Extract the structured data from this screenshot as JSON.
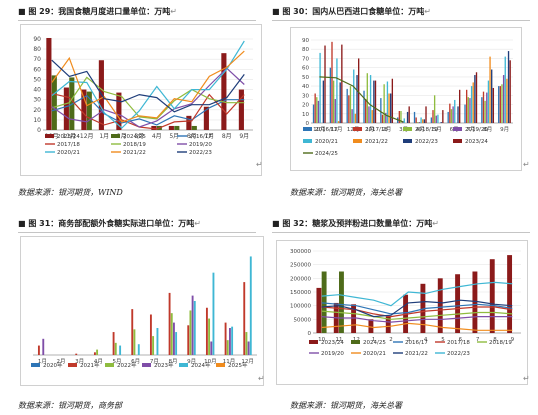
{
  "figures": [
    {
      "title": "图 29：我国食糖月度进口量单位：万吨",
      "source": "数据来源：银河期货，WIND"
    },
    {
      "title": "图 30：国内从巴西进口食糖单位：万吨",
      "source": "数据来源：银河期货，海关总署"
    },
    {
      "title": "图 31：商务部配额外食糖实际进口单位：万吨",
      "source": "数据来源：银河期货，商务部"
    },
    {
      "title": "图 32：糖浆及预拌粉进口数量单位：万吨",
      "source": "数据来源：银河期货，海关总署"
    }
  ],
  "return_mark": "↵",
  "chart_data": [
    {
      "type": "bar",
      "categories": [
        "10月",
        "11月",
        "12月",
        "1月",
        "2月",
        "3月",
        "4月",
        "5月",
        "6月",
        "7月",
        "8月",
        "9月"
      ],
      "ylim": [
        0,
        90
      ],
      "yticks": [
        0,
        10,
        20,
        30,
        40,
        50,
        60,
        70,
        80,
        90
      ],
      "bar_series": [
        {
          "name": "2023/24",
          "color": "#8b1a1a",
          "values": [
            91,
            42,
            40,
            69,
            37,
            0,
            4,
            4,
            14,
            23,
            76,
            40
          ]
        },
        {
          "name": "2024/25",
          "color": "#4e6b1a",
          "values": [
            54,
            52,
            38,
            0,
            0,
            0,
            4,
            4,
            4,
            0,
            0,
            0
          ]
        }
      ],
      "line_series": [
        {
          "name": "2016/17",
          "color": "#2e75b6",
          "values": [
            19,
            24,
            34,
            16,
            7,
            11,
            5,
            14,
            10,
            22,
            30,
            30
          ]
        },
        {
          "name": "2017/18",
          "color": "#c0392b",
          "values": [
            36,
            32,
            13,
            5,
            10,
            3,
            1,
            8,
            9,
            35,
            16,
            35
          ]
        },
        {
          "name": "2018/19",
          "color": "#8fbc3f",
          "values": [
            22,
            27,
            52,
            38,
            33,
            13,
            11,
            29,
            40,
            31,
            27,
            27
          ]
        },
        {
          "name": "2019/20",
          "color": "#7f4ea8",
          "values": [
            23,
            11,
            8,
            20,
            14,
            3,
            9,
            21,
            26,
            44,
            61,
            45
          ]
        },
        {
          "name": "2020/21",
          "color": "#3fb7d4",
          "values": [
            34,
            48,
            47,
            17,
            2,
            19,
            43,
            21,
            40,
            40,
            60,
            88
          ]
        },
        {
          "name": "2021/22",
          "color": "#f08c1e",
          "values": [
            47,
            71,
            24,
            33,
            8,
            14,
            12,
            31,
            28,
            53,
            62,
            78
          ]
        },
        {
          "name": "2022/23",
          "color": "#1f3d7a",
          "values": [
            69,
            53,
            58,
            31,
            28,
            35,
            32,
            18,
            25,
            25,
            32,
            55
          ]
        }
      ]
    },
    {
      "type": "bar",
      "categories": [
        "10月",
        "11月",
        "12月",
        "1月",
        "2月",
        "3月",
        "4月",
        "5月",
        "6月",
        "7月",
        "8月",
        "9月"
      ],
      "ylim": [
        0,
        90
      ],
      "yticks": [
        0,
        10,
        20,
        30,
        40,
        50,
        60,
        70,
        80,
        90
      ],
      "bar_series": [
        {
          "name": "2016/17",
          "color": "#2e75b6",
          "values": [
            20,
            60,
            37,
            35,
            27,
            6,
            12,
            6,
            12,
            20,
            28,
            40
          ]
        },
        {
          "name": "2017/18",
          "color": "#c0392b",
          "values": [
            32,
            88,
            30,
            26,
            9,
            13,
            6,
            14,
            21,
            36,
            34,
            40
          ]
        },
        {
          "name": "2018/19",
          "color": "#8fbc3f",
          "values": [
            28,
            46,
            40,
            54,
            42,
            13,
            1,
            30,
            15,
            28,
            24,
            42
          ]
        },
        {
          "name": "2019/20",
          "color": "#7f4ea8",
          "values": [
            24,
            26,
            15,
            18,
            11,
            1,
            1,
            8,
            18,
            27,
            33,
            52
          ]
        },
        {
          "name": "2020/21",
          "color": "#3fb7d4",
          "values": [
            76,
            70,
            58,
            52,
            45,
            5,
            6,
            9,
            25,
            40,
            46,
            72
          ]
        },
        {
          "name": "2021/22",
          "color": "#f08c1e",
          "values": [
            0,
            2,
            10,
            14,
            32,
            0,
            4,
            0,
            0,
            44,
            72,
            48
          ]
        },
        {
          "name": "2022/23",
          "color": "#1f3d7a",
          "values": [
            46,
            44,
            52,
            46,
            32,
            12,
            4,
            1,
            18,
            52,
            58,
            78
          ]
        },
        {
          "name": "2023/24",
          "color": "#8b1a1a",
          "values": [
            84,
            85,
            70,
            46,
            48,
            18,
            18,
            14,
            36,
            55,
            38,
            68
          ]
        }
      ],
      "line_series": [
        {
          "name": "2024/25",
          "color": "#4e6b1a",
          "values": [
            50,
            49,
            40,
            20,
            8,
            1,
            null,
            null,
            null,
            null,
            null,
            null
          ]
        }
      ]
    },
    {
      "type": "bar",
      "categories": [
        "1月",
        "2月",
        "3月",
        "4月",
        "5月",
        "6月",
        "7月",
        "8月",
        "9月",
        "10月",
        "11月",
        "12月"
      ],
      "ylim": [
        0,
        80
      ],
      "bar_series": [
        {
          "name": "2020年",
          "color": "#2e75b6",
          "values": [
            0,
            0,
            0,
            0,
            0,
            0,
            0,
            0,
            0,
            0,
            0,
            0
          ]
        },
        {
          "name": "2021年",
          "color": "#c0392b",
          "values": [
            7,
            0,
            1,
            2,
            17,
            34,
            30,
            46,
            22,
            35,
            24,
            54
          ]
        },
        {
          "name": "2022年",
          "color": "#8fbc3f",
          "values": [
            0,
            0,
            0,
            4,
            9,
            19,
            14,
            31,
            33,
            27,
            11,
            17
          ]
        },
        {
          "name": "2023年",
          "color": "#7f4ea8",
          "values": [
            12,
            0,
            0,
            0,
            0,
            0,
            0,
            24,
            44,
            10,
            20,
            10
          ]
        },
        {
          "name": "2024年",
          "color": "#3fb7d4",
          "values": [
            0,
            0,
            0,
            0,
            7,
            8,
            20,
            17,
            40,
            61,
            21,
            73
          ]
        },
        {
          "name": "2025年",
          "color": "#f08c1e",
          "values": [
            0,
            0,
            0,
            0,
            0,
            0,
            0,
            0,
            0,
            0,
            0,
            0
          ]
        }
      ]
    },
    {
      "type": "bar",
      "categories": [
        "10",
        "11",
        "12",
        "1",
        "2",
        "3",
        "4",
        "5",
        "6",
        "7",
        "8",
        "9"
      ],
      "ylim": [
        0,
        300000
      ],
      "yticks": [
        0,
        50000,
        100000,
        150000,
        200000,
        250000,
        300000
      ],
      "ytick_labels": [
        "0",
        "50000",
        "100000",
        "150000",
        "200000",
        "250000",
        "300000"
      ],
      "bar_series": [
        {
          "name": "2023/24",
          "color": "#8b1a1a",
          "values": [
            165000,
            110000,
            105000,
            50000,
            60000,
            140000,
            180000,
            200000,
            215000,
            225000,
            270000,
            285000
          ]
        },
        {
          "name": "2024/25",
          "color": "#4e6b1a",
          "values": [
            225000,
            225000,
            0,
            0,
            0,
            0,
            0,
            0,
            0,
            0,
            0,
            0
          ]
        }
      ],
      "line_series": [
        {
          "name": "2016/17",
          "color": "#2e75b6",
          "values": [
            110000,
            105000,
            100000,
            85000,
            70000,
            75000,
            90000,
            95000,
            100000,
            105000,
            100000,
            90000
          ]
        },
        {
          "name": "2017/18",
          "color": "#c0392b",
          "values": [
            95000,
            90000,
            85000,
            70000,
            60000,
            70000,
            80000,
            85000,
            90000,
            95000,
            95000,
            85000
          ]
        },
        {
          "name": "2018/19",
          "color": "#8fbc3f",
          "values": [
            80000,
            75000,
            70000,
            60000,
            50000,
            55000,
            60000,
            65000,
            70000,
            75000,
            75000,
            70000
          ]
        },
        {
          "name": "2019/20",
          "color": "#7f4ea8",
          "values": [
            60000,
            55000,
            55000,
            45000,
            40000,
            45000,
            50000,
            50000,
            55000,
            60000,
            60000,
            60000
          ]
        },
        {
          "name": "2020/21",
          "color": "#f08c1e",
          "values": [
            20000,
            25000,
            30000,
            20000,
            25000,
            35000,
            30000,
            20000,
            15000,
            10000,
            10000,
            10000
          ]
        },
        {
          "name": "2021/22",
          "color": "#1f3d7a",
          "values": [
            95000,
            100000,
            85000,
            60000,
            65000,
            110000,
            115000,
            110000,
            120000,
            115000,
            105000,
            100000
          ]
        },
        {
          "name": "2022/23",
          "color": "#3fb7d4",
          "values": [
            135000,
            140000,
            130000,
            120000,
            100000,
            150000,
            145000,
            160000,
            170000,
            180000,
            185000,
            180000
          ]
        }
      ]
    }
  ]
}
